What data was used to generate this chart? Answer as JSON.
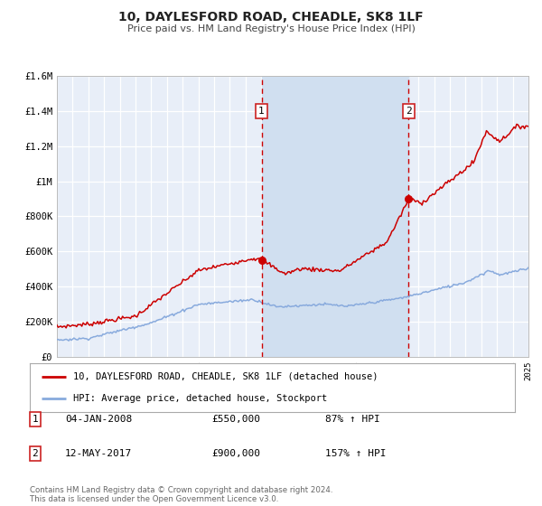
{
  "title": "10, DAYLESFORD ROAD, CHEADLE, SK8 1LF",
  "subtitle": "Price paid vs. HM Land Registry's House Price Index (HPI)",
  "ylim": [
    0,
    1600000
  ],
  "xlim": [
    1995,
    2025
  ],
  "yticks": [
    0,
    200000,
    400000,
    600000,
    800000,
    1000000,
    1200000,
    1400000,
    1600000
  ],
  "ytick_labels": [
    "£0",
    "£200K",
    "£400K",
    "£600K",
    "£800K",
    "£1M",
    "£1.2M",
    "£1.4M",
    "£1.6M"
  ],
  "background_color": "#e8eef8",
  "grid_color": "#ffffff",
  "sale1_date": 2008.02,
  "sale1_price": 550000,
  "sale2_date": 2017.37,
  "sale2_price": 900000,
  "line1_color": "#cc0000",
  "line2_color": "#88aadd",
  "span_color": "#d0dff0",
  "legend1_label": "10, DAYLESFORD ROAD, CHEADLE, SK8 1LF (detached house)",
  "legend2_label": "HPI: Average price, detached house, Stockport",
  "note1_date": "04-JAN-2008",
  "note1_price": "£550,000",
  "note1_pct": "87% ↑ HPI",
  "note2_date": "12-MAY-2017",
  "note2_price": "£900,000",
  "note2_pct": "157% ↑ HPI",
  "footer": "Contains HM Land Registry data © Crown copyright and database right 2024.\nThis data is licensed under the Open Government Licence v3.0."
}
